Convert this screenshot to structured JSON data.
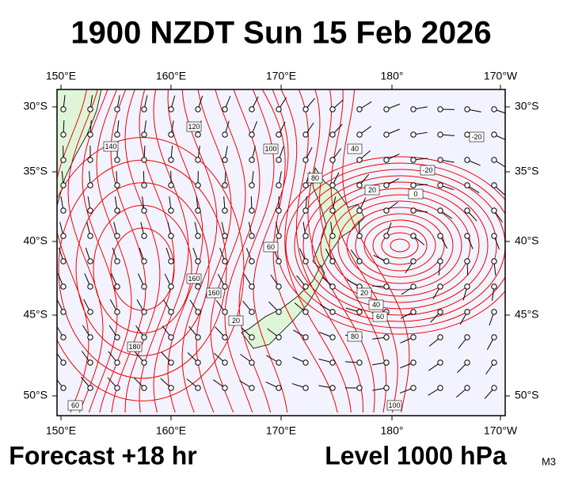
{
  "header": {
    "title": "1900 NZDT Sun 15 Feb 2026"
  },
  "axes": {
    "top": [
      "150°E",
      "160°E",
      "170°E",
      "180°",
      "170°W"
    ],
    "bottom": [
      "150°E",
      "160°E",
      "170°E",
      "180°",
      "170°W"
    ],
    "left": [
      "30°S",
      "35°S",
      "40°S",
      "45°S",
      "50°S"
    ],
    "right": [
      "30°S",
      "35°S",
      "40°S",
      "45°S",
      "50°S"
    ]
  },
  "contour_labels": [
    "120",
    "140",
    "100",
    "80",
    "60",
    "40",
    "20",
    "0",
    "-20",
    "-20",
    "20",
    "40",
    "60",
    "80",
    "100",
    "160",
    "180",
    "160",
    "20",
    "60"
  ],
  "footer": {
    "forecast": "Forecast +18 hr",
    "level": "Level 1000 hPa",
    "model": "M3"
  }
}
